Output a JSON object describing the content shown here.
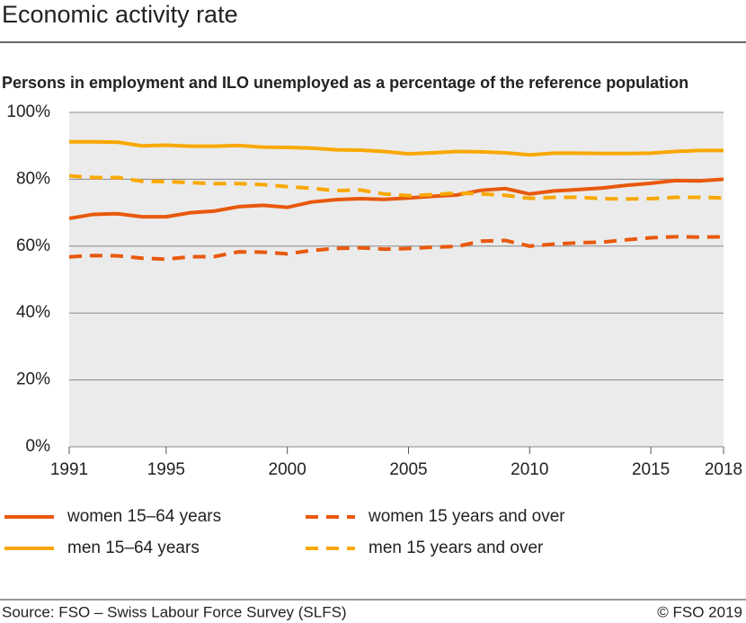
{
  "chart_data": {
    "type": "line",
    "title": "Economic activity rate",
    "subtitle": "Persons in employment and ILO unemployed  as a percentage of the reference population",
    "source": "Source: FSO – Swiss Labour Force Survey (SLFS)",
    "copyright": "© FSO 2019",
    "x": [
      1991,
      1992,
      1993,
      1994,
      1995,
      1996,
      1997,
      1998,
      1999,
      2000,
      2001,
      2002,
      2003,
      2004,
      2005,
      2006,
      2007,
      2008,
      2009,
      2010,
      2011,
      2012,
      2013,
      2014,
      2015,
      2016,
      2017,
      2018
    ],
    "xlim": [
      1991,
      2018
    ],
    "xticks": [
      1991,
      1995,
      2000,
      2005,
      2010,
      2015,
      2018
    ],
    "ylim": [
      0,
      100
    ],
    "yticks": [
      {
        "value": 0,
        "label": "0%"
      },
      {
        "value": 20,
        "label": "20%"
      },
      {
        "value": 40,
        "label": "40%"
      },
      {
        "value": 60,
        "label": "60%"
      },
      {
        "value": 80,
        "label": "80%"
      },
      {
        "value": 100,
        "label": "100%"
      }
    ],
    "grid": true,
    "series": [
      {
        "name": "women 15–64 years",
        "color": "#e8590c",
        "dashed": false,
        "values": [
          68.3,
          69.5,
          69.7,
          68.8,
          68.8,
          70.0,
          70.5,
          71.8,
          72.2,
          71.6,
          73.2,
          73.9,
          74.2,
          74.0,
          74.4,
          74.9,
          75.3,
          76.7,
          77.2,
          75.6,
          76.5,
          76.9,
          77.4,
          78.2,
          78.8,
          79.6,
          79.5,
          80.0
        ]
      },
      {
        "name": "women 15 years and over",
        "color": "#e8590c",
        "dashed": true,
        "values": [
          56.8,
          57.2,
          57.1,
          56.4,
          56.1,
          56.8,
          56.9,
          58.3,
          58.2,
          57.7,
          58.7,
          59.3,
          59.5,
          59.1,
          59.3,
          59.7,
          59.9,
          61.5,
          61.7,
          60.0,
          60.6,
          61.0,
          61.2,
          61.9,
          62.5,
          62.8,
          62.7,
          62.8
        ]
      },
      {
        "name": "men 15–64 years",
        "color": "#f9a800",
        "dashed": false,
        "values": [
          91.2,
          91.2,
          91.1,
          90.0,
          90.2,
          89.9,
          89.9,
          90.1,
          89.6,
          89.5,
          89.3,
          88.8,
          88.7,
          88.3,
          87.6,
          87.9,
          88.3,
          88.2,
          87.9,
          87.3,
          87.8,
          87.8,
          87.7,
          87.7,
          87.8,
          88.3,
          88.6,
          88.6
        ]
      },
      {
        "name": "men 15 years and over",
        "color": "#f9a800",
        "dashed": true,
        "values": [
          81.0,
          80.5,
          80.5,
          79.4,
          79.3,
          79.0,
          78.7,
          78.7,
          78.4,
          77.8,
          77.3,
          76.6,
          76.8,
          75.6,
          75.1,
          75.4,
          75.9,
          75.6,
          75.2,
          74.3,
          74.6,
          74.6,
          74.2,
          74.1,
          74.2,
          74.6,
          74.6,
          74.4
        ]
      }
    ]
  }
}
